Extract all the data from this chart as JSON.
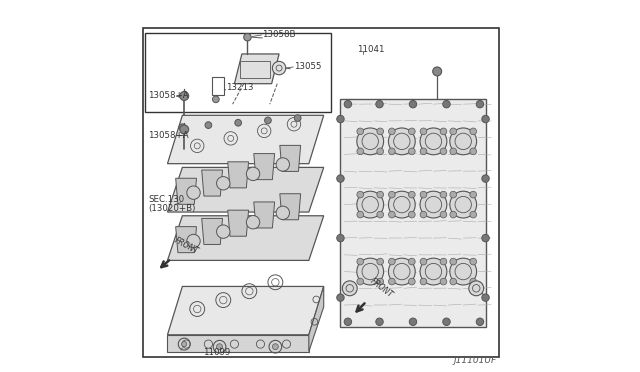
{
  "bg_color": "#ffffff",
  "border_color": "#333333",
  "line_color": "#555555",
  "text_color": "#333333",
  "watermark": "J11101UF",
  "label_13058B": "13058B",
  "label_13055": "13055",
  "label_13213": "13213",
  "label_13058A": "13058+A",
  "label_sec130": "SEC.130",
  "label_13020B": "(13020+B)",
  "label_11099": "11099",
  "label_11041": "11041",
  "label_front": "FRONT"
}
